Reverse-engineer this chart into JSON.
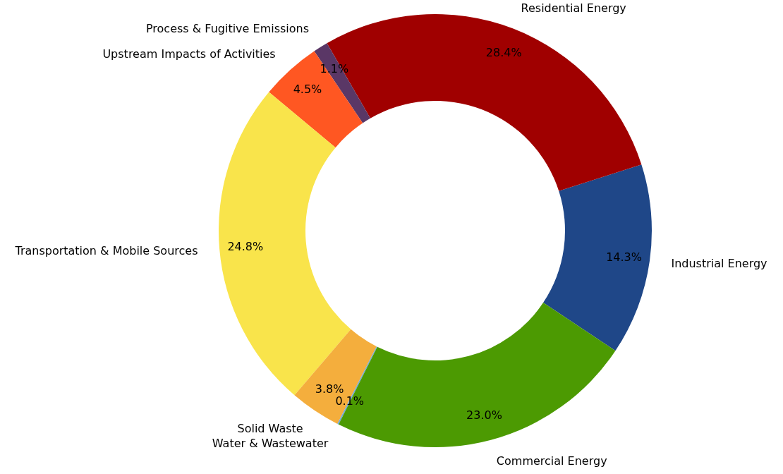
{
  "chart_data": {
    "type": "donut",
    "categories": [
      "Industrial Energy",
      "Residential Energy",
      "Process & Fugitive Emissions",
      "Upstream Impacts of Activities",
      "Transportation & Mobile Sources",
      "Solid Waste",
      "Water & Wastewater",
      "Commercial Energy"
    ],
    "values": [
      14.3,
      28.4,
      1.1,
      4.5,
      24.8,
      3.8,
      0.1,
      23.0
    ],
    "colors": [
      "#1f4788",
      "#a00000",
      "#5a3766",
      "#ff5722",
      "#f9e44b",
      "#f4ae3d",
      "#6fa8dc",
      "#4c9a02"
    ],
    "value_labels": [
      "14.3%",
      "28.4%",
      "1.1%",
      "4.5%",
      "24.8%",
      "3.8%",
      "0.1%",
      "23.0%"
    ]
  }
}
